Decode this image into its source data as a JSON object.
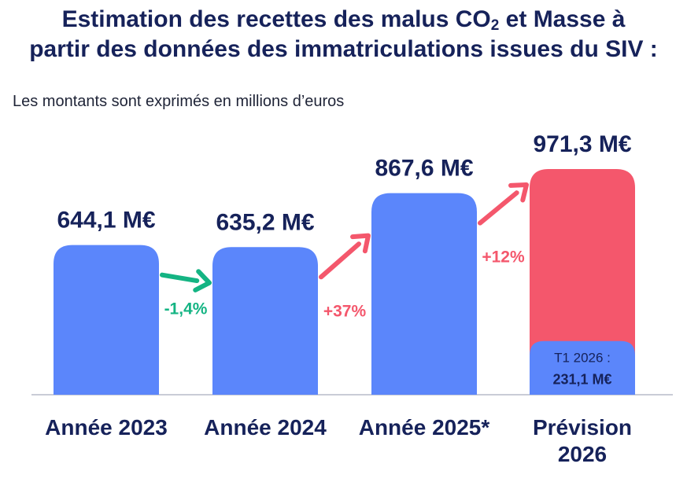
{
  "title": {
    "line1_pre": "Estimation des recettes des malus CO",
    "line1_sub": "2",
    "line1_post": " et Masse à",
    "line2": "partir des données des immatriculations issues du SIV :"
  },
  "subtitle": "Les montants sont exprimés en millions d’euros",
  "colors": {
    "bar": "#5b86fb",
    "forecast": "#f4576c",
    "decrease": "#14b483",
    "increase": "#f4576c",
    "text": "#16225a"
  },
  "chart_data": {
    "type": "bar",
    "categories": [
      "Année 2023",
      "Année 2024",
      "Année 2025*",
      "Prévision 2026"
    ],
    "category_lines": [
      [
        "Année 2023"
      ],
      [
        "Année 2024"
      ],
      [
        "Année 2025*"
      ],
      [
        "Prévision",
        "2026"
      ]
    ],
    "values": [
      644.1,
      635.2,
      867.6,
      971.3
    ],
    "value_labels": [
      "644,1 M€",
      "635,2 M€",
      "867,6 M€",
      "971,3 M€"
    ],
    "changes": [
      "-1,4%",
      "+37%",
      "+12%"
    ],
    "forecast_index": 3,
    "q1_2026": {
      "label": "T1 2026 :",
      "value": 231.1,
      "value_label": "231,1 M€"
    },
    "ylim": [
      0,
      971.3
    ]
  }
}
